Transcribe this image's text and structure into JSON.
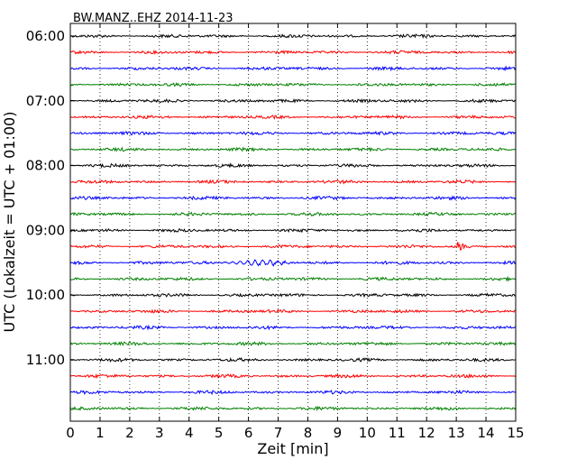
{
  "chart_data": {
    "type": "line",
    "title": "BW.MANZ..EHZ 2014-11-23",
    "xlabel": "Zeit  [min]",
    "ylabel": "UTC (Lokalzeit = UTC + 01:00)",
    "xlim": [
      0,
      15
    ],
    "x_ticks": [
      "0",
      "1",
      "2",
      "3",
      "4",
      "5",
      "6",
      "7",
      "8",
      "9",
      "10",
      "11",
      "12",
      "13",
      "14",
      "15"
    ],
    "y_tick_labels": [
      "06:00",
      "07:00",
      "08:00",
      "09:00",
      "10:00",
      "11:00"
    ],
    "grid": "vertical dotted",
    "trace_colors": [
      "#000000",
      "#ff0000",
      "#0000ff",
      "#008000"
    ],
    "trace_start_times": [
      "06:00",
      "06:15",
      "06:30",
      "06:45",
      "07:00",
      "07:15",
      "07:30",
      "07:45",
      "08:00",
      "08:15",
      "08:30",
      "08:45",
      "09:00",
      "09:15",
      "09:30",
      "09:45",
      "10:00",
      "10:15",
      "10:30",
      "10:45",
      "11:00",
      "11:15",
      "11:30",
      "11:45"
    ],
    "events": [
      {
        "trace_start": "09:15",
        "minute": 13.1,
        "label": ""
      }
    ]
  }
}
